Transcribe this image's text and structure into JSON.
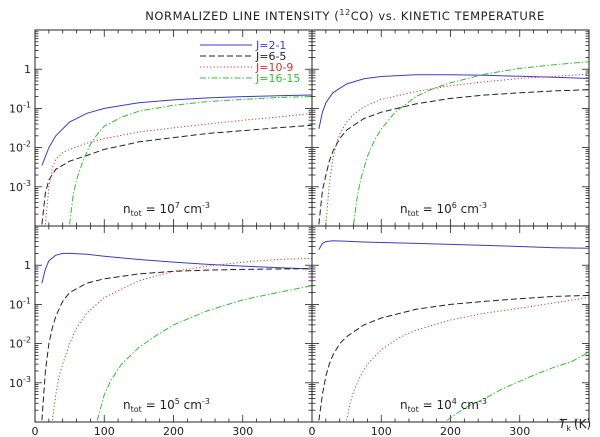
{
  "chart_data": {
    "type": "line",
    "title": {
      "pre": "NORMALIZED LINE INTENSITY (",
      "sup": "12",
      "post": "CO) vs. KINETIC TEMPERATURE"
    },
    "xlabel": {
      "main": "T",
      "sub": "k",
      "unit": "(K)"
    },
    "xlim": [
      0,
      400
    ],
    "ylim": [
      0.0001,
      10
    ],
    "yscale": "log",
    "xticks": [
      0,
      100,
      200,
      300
    ],
    "yticks": [
      {
        "value": 0.001,
        "base": "10",
        "exp": "-3"
      },
      {
        "value": 0.01,
        "base": "10",
        "exp": "-2"
      },
      {
        "value": 0.1,
        "base": "10",
        "exp": "-1"
      },
      {
        "value": 1,
        "base": "1",
        "exp": ""
      }
    ],
    "legend": {
      "position": "top-right of upper-left panel",
      "entries": [
        {
          "name": "J=2-1",
          "color": "#3b3bd0",
          "dash": ""
        },
        {
          "name": "J=6-5",
          "color": "#222222",
          "dash": "6,3"
        },
        {
          "name": "J=10-9",
          "color": "#d83030",
          "dash": "1.2,2.2"
        },
        {
          "name": "J=16-15",
          "color": "#30c030",
          "dash": "6,2,1.5,2"
        }
      ]
    },
    "panels": [
      {
        "label": {
          "n": "n",
          "sub": "tot",
          "eq": " = 10",
          "exp": "7",
          "unit": " cm",
          "uexp": "-3"
        },
        "series": [
          {
            "x": [
              10,
              20,
              30,
              50,
              75,
              100,
              150,
              200,
              250,
              300,
              350,
              400
            ],
            "y": [
              0.0035,
              0.01,
              0.02,
              0.045,
              0.075,
              0.1,
              0.14,
              0.165,
              0.185,
              0.2,
              0.21,
              0.22
            ]
          },
          {
            "x": [
              10,
              15,
              20,
              30,
              50,
              75,
              100,
              150,
              200,
              250,
              300,
              350,
              400
            ],
            "y": [
              0.00011,
              0.0007,
              0.0015,
              0.0028,
              0.0045,
              0.0063,
              0.009,
              0.014,
              0.018,
              0.023,
              0.027,
              0.032,
              0.037
            ]
          },
          {
            "x": [
              15,
              20,
              25,
              30,
              40,
              50,
              75,
              100,
              150,
              200,
              250,
              300,
              350,
              400
            ],
            "y": [
              0.00011,
              0.001,
              0.003,
              0.005,
              0.0075,
              0.009,
              0.013,
              0.017,
              0.025,
              0.032,
              0.04,
              0.05,
              0.06,
              0.075
            ]
          },
          {
            "x": [
              50,
              55,
              60,
              70,
              80,
              90,
              100,
              125,
              150,
              200,
              250,
              300,
              350,
              400
            ],
            "y": [
              0.00011,
              0.0006,
              0.0015,
              0.005,
              0.012,
              0.022,
              0.035,
              0.06,
              0.085,
              0.12,
              0.15,
              0.17,
              0.19,
              0.2
            ]
          }
        ]
      },
      {
        "label": {
          "n": "n",
          "sub": "tot",
          "eq": " = 10",
          "exp": "6",
          "unit": " cm",
          "uexp": "-3"
        },
        "series": [
          {
            "x": [
              10,
              15,
              20,
              30,
              50,
              75,
              100,
              150,
              200,
              250,
              300,
              350,
              400
            ],
            "y": [
              0.03,
              0.08,
              0.14,
              0.25,
              0.42,
              0.57,
              0.65,
              0.72,
              0.72,
              0.7,
              0.66,
              0.62,
              0.58
            ]
          },
          {
            "x": [
              10,
              15,
              20,
              25,
              30,
              40,
              50,
              75,
              100,
              150,
              200,
              250,
              300,
              350,
              400
            ],
            "y": [
              0.00011,
              0.0008,
              0.002,
              0.0045,
              0.008,
              0.017,
              0.028,
              0.055,
              0.08,
              0.13,
              0.18,
              0.22,
              0.25,
              0.28,
              0.3
            ]
          },
          {
            "x": [
              20,
              25,
              30,
              35,
              40,
              50,
              60,
              75,
              100,
              150,
              200,
              250,
              300,
              350,
              400
            ],
            "y": [
              0.00011,
              0.0012,
              0.005,
              0.012,
              0.022,
              0.045,
              0.07,
              0.11,
              0.17,
              0.27,
              0.38,
              0.48,
              0.58,
              0.66,
              0.75
            ]
          },
          {
            "x": [
              60,
              65,
              70,
              80,
              90,
              100,
              120,
              150,
              175,
              200,
              250,
              300,
              350,
              400
            ],
            "y": [
              0.00011,
              0.0005,
              0.0015,
              0.006,
              0.015,
              0.03,
              0.08,
              0.2,
              0.32,
              0.45,
              0.75,
              1.05,
              1.3,
              1.55
            ]
          }
        ]
      },
      {
        "label": {
          "n": "n",
          "sub": "tot",
          "eq": " = 10",
          "exp": "5",
          "unit": " cm",
          "uexp": "-3"
        },
        "series": [
          {
            "x": [
              10,
              15,
              20,
              30,
              40,
              50,
              75,
              100,
              150,
              200,
              250,
              300,
              350,
              400
            ],
            "y": [
              0.35,
              0.8,
              1.3,
              1.8,
              2.0,
              2.0,
              1.9,
              1.7,
              1.4,
              1.2,
              1.05,
              0.95,
              0.87,
              0.8
            ]
          },
          {
            "x": [
              10,
              15,
              20,
              25,
              30,
              40,
              50,
              75,
              100,
              150,
              200,
              250,
              300,
              350,
              400
            ],
            "y": [
              0.00011,
              0.002,
              0.01,
              0.025,
              0.05,
              0.12,
              0.2,
              0.35,
              0.45,
              0.6,
              0.7,
              0.75,
              0.78,
              0.8,
              0.82
            ]
          },
          {
            "x": [
              25,
              30,
              35,
              40,
              50,
              60,
              75,
              100,
              150,
              200,
              250,
              300,
              350,
              400
            ],
            "y": [
              0.00011,
              0.0005,
              0.0015,
              0.003,
              0.01,
              0.025,
              0.06,
              0.15,
              0.4,
              0.7,
              0.95,
              1.2,
              1.4,
              1.5
            ]
          },
          {
            "x": [
              90,
              100,
              110,
              125,
              150,
              175,
              200,
              250,
              300,
              350,
              400
            ],
            "y": [
              0.00011,
              0.0005,
              0.0012,
              0.003,
              0.008,
              0.016,
              0.03,
              0.07,
              0.13,
              0.2,
              0.3
            ]
          }
        ]
      },
      {
        "label": {
          "n": "n",
          "sub": "tot",
          "eq": " = 10",
          "exp": "4",
          "unit": " cm",
          "uexp": "-3"
        },
        "series": [
          {
            "x": [
              10,
              15,
              20,
              30,
              50,
              75,
              100,
              150,
              200,
              250,
              300,
              350,
              400
            ],
            "y": [
              2.5,
              3.6,
              4.0,
              4.2,
              4.1,
              3.9,
              3.8,
              3.6,
              3.4,
              3.2,
              3.0,
              2.8,
              2.7
            ]
          },
          {
            "x": [
              10,
              15,
              20,
              25,
              30,
              40,
              50,
              75,
              100,
              150,
              200,
              250,
              300,
              350,
              400
            ],
            "y": [
              0.00011,
              0.0005,
              0.0015,
              0.003,
              0.005,
              0.01,
              0.015,
              0.03,
              0.045,
              0.075,
              0.1,
              0.12,
              0.14,
              0.16,
              0.17
            ]
          },
          {
            "x": [
              50,
              55,
              60,
              70,
              80,
              100,
              125,
              150,
              200,
              250,
              300,
              350,
              400
            ],
            "y": [
              0.00011,
              0.0003,
              0.0006,
              0.0015,
              0.003,
              0.007,
              0.014,
              0.022,
              0.04,
              0.06,
              0.08,
              0.11,
              0.15
            ]
          },
          {
            "x": [
              195,
              210,
              225,
              250,
              275,
              300,
              325,
              350,
              375,
              400
            ],
            "y": [
              0.00011,
              0.00017,
              0.00025,
              0.0004,
              0.0007,
              0.0011,
              0.0017,
              0.0025,
              0.0035,
              0.006
            ]
          }
        ]
      }
    ]
  }
}
